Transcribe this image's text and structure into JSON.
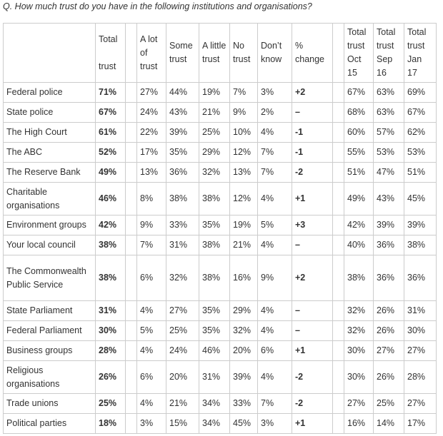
{
  "question": "Q. How much trust do you have in the following institutions and organisations?",
  "headers": {
    "total": [
      "Total",
      "trust"
    ],
    "alot": "A lot of trust",
    "some": "Some trust",
    "little": "A little trust",
    "no": "No trust",
    "dk": "Don’t know",
    "change": "% change",
    "oct": "Total trust Oct 15",
    "sep": "Total trust Sep 16",
    "jan": "Total trust Jan 17"
  },
  "rows": [
    [
      "Federal police",
      "71%",
      "27%",
      "44%",
      "19%",
      "7%",
      "3%",
      "+2",
      "67%",
      "63%",
      "69%"
    ],
    [
      "State police",
      "67%",
      "24%",
      "43%",
      "21%",
      "9%",
      "2%",
      "–",
      "68%",
      "63%",
      "67%"
    ],
    [
      "The High Court",
      "61%",
      "22%",
      "39%",
      "25%",
      "10%",
      "4%",
      "-1",
      "60%",
      "57%",
      "62%"
    ],
    [
      "The ABC",
      "52%",
      "17%",
      "35%",
      "29%",
      "12%",
      "7%",
      "-1",
      "55%",
      "53%",
      "53%"
    ],
    [
      "The Reserve Bank",
      "49%",
      "13%",
      "36%",
      "32%",
      "13%",
      "7%",
      "-2",
      "51%",
      "47%",
      "51%"
    ],
    [
      "Charitable organisations",
      "46%",
      "8%",
      "38%",
      "38%",
      "12%",
      "4%",
      "+1",
      "49%",
      "43%",
      "45%"
    ],
    [
      "Environment groups",
      "42%",
      "9%",
      "33%",
      "35%",
      "19%",
      "5%",
      "+3",
      "42%",
      "39%",
      "39%"
    ],
    [
      "Your local council",
      "38%",
      "7%",
      "31%",
      "38%",
      "21%",
      "4%",
      "–",
      "40%",
      "36%",
      "38%"
    ],
    [
      "The Commonwealth Public Service",
      "38%",
      "6%",
      "32%",
      "38%",
      "16%",
      "9%",
      "+2",
      "38%",
      "36%",
      "36%"
    ],
    [
      "State Parliament",
      "31%",
      "4%",
      "27%",
      "35%",
      "29%",
      "4%",
      "–",
      "32%",
      "26%",
      "31%"
    ],
    [
      "Federal Parliament",
      "30%",
      "5%",
      "25%",
      "35%",
      "32%",
      "4%",
      "–",
      "32%",
      "26%",
      "30%"
    ],
    [
      "Business groups",
      "28%",
      "4%",
      "24%",
      "46%",
      "20%",
      "6%",
      "+1",
      "30%",
      "27%",
      "27%"
    ],
    [
      "Religious organisations",
      "26%",
      "6%",
      "20%",
      "31%",
      "39%",
      "4%",
      "-2",
      "30%",
      "26%",
      "28%"
    ],
    [
      "Trade unions",
      "25%",
      "4%",
      "21%",
      "34%",
      "33%",
      "7%",
      "-2",
      "27%",
      "25%",
      "27%"
    ],
    [
      "Political parties",
      "18%",
      "3%",
      "15%",
      "34%",
      "45%",
      "3%",
      "+1",
      "16%",
      "14%",
      "17%"
    ]
  ]
}
